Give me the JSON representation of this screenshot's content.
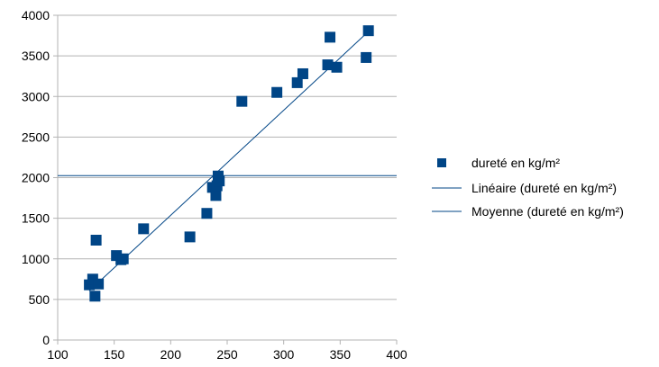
{
  "chart_data": {
    "type": "scatter",
    "title": "",
    "xlabel": "",
    "ylabel": "",
    "xlim": [
      100,
      400
    ],
    "ylim": [
      0,
      4000
    ],
    "xticks": [
      100,
      150,
      200,
      250,
      300,
      350,
      400
    ],
    "yticks": [
      0,
      500,
      1000,
      1500,
      2000,
      2500,
      3000,
      3500,
      4000
    ],
    "grid": "horizontal",
    "legend_position": "right",
    "series": [
      {
        "name": "dureté en kg/m²",
        "kind": "scatter",
        "marker": "square",
        "color": "#004586",
        "points": [
          [
            128,
            680
          ],
          [
            131,
            750
          ],
          [
            133,
            540
          ],
          [
            134,
            1230
          ],
          [
            136,
            690
          ],
          [
            152,
            1040
          ],
          [
            156,
            990
          ],
          [
            158,
            1000
          ],
          [
            176,
            1370
          ],
          [
            217,
            1270
          ],
          [
            232,
            1560
          ],
          [
            237,
            1880
          ],
          [
            240,
            1780
          ],
          [
            241,
            1900
          ],
          [
            242,
            2020
          ],
          [
            243,
            1960
          ],
          [
            263,
            2940
          ],
          [
            294,
            3050
          ],
          [
            312,
            3170
          ],
          [
            317,
            3280
          ],
          [
            339,
            3390
          ],
          [
            341,
            3730
          ],
          [
            347,
            3360
          ],
          [
            373,
            3480
          ],
          [
            375,
            3810
          ]
        ]
      },
      {
        "name": "Linéaire (dureté en kg/m²)",
        "kind": "trendline-linear",
        "color": "#004586",
        "x": [
          128,
          375
        ],
        "y": [
          605,
          3800
        ]
      },
      {
        "name": "Moyenne (dureté en kg/m²)",
        "kind": "moving-average",
        "color": "#004586",
        "y": 2025
      }
    ]
  }
}
